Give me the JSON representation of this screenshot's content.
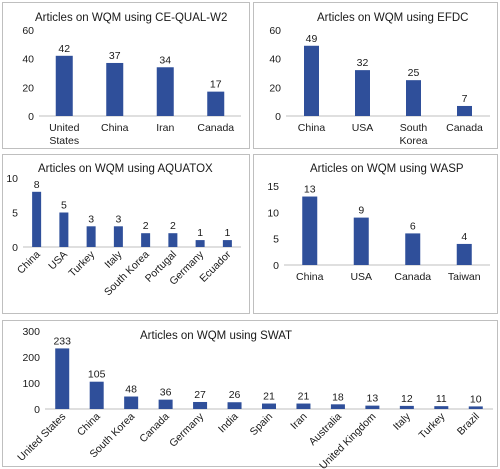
{
  "chart_data": [
    {
      "type": "bar",
      "title": "Articles on WQM using CE-QUAL-W2",
      "categories": [
        "United States",
        "China",
        "Iran",
        "Canada"
      ],
      "values": [
        42,
        37,
        34,
        17
      ],
      "ylim": [
        0,
        60
      ],
      "yticks": [
        0,
        20,
        40,
        60
      ],
      "grid": false,
      "legend": "none"
    },
    {
      "type": "bar",
      "title": "Articles on WQM using EFDC",
      "categories": [
        "China",
        "USA",
        "South Korea",
        "Canada"
      ],
      "values": [
        49,
        32,
        25,
        7
      ],
      "ylim": [
        0,
        60
      ],
      "yticks": [
        0,
        20,
        40,
        60
      ],
      "grid": false,
      "legend": "none"
    },
    {
      "type": "bar",
      "title": "Articles on WQM using AQUATOX",
      "categories": [
        "China",
        "USA",
        "Turkey",
        "Italy",
        "South Korea",
        "Portugal",
        "Germany",
        "Ecuador"
      ],
      "values": [
        8,
        5,
        3,
        3,
        2,
        2,
        1,
        1
      ],
      "ylim": [
        0,
        10
      ],
      "yticks": [
        0,
        5,
        10
      ],
      "grid": false,
      "legend": "none"
    },
    {
      "type": "bar",
      "title": "Articles on WQM using WASP",
      "categories": [
        "China",
        "USA",
        "Canada",
        "Taiwan"
      ],
      "values": [
        13,
        9,
        6,
        4
      ],
      "ylim": [
        0,
        15
      ],
      "yticks": [
        0,
        5,
        10,
        15
      ],
      "grid": false,
      "legend": "none"
    },
    {
      "type": "bar",
      "title": "Articles on WQM using SWAT",
      "categories": [
        "United States",
        "China",
        "South Korea",
        "Canada",
        "Germany",
        "India",
        "Spain",
        "Iran",
        "Australia",
        "United Kingdom",
        "Italy",
        "Turkey",
        "Brazil"
      ],
      "values": [
        233,
        105,
        48,
        36,
        27,
        26,
        21,
        21,
        18,
        13,
        12,
        11,
        10
      ],
      "ylim": [
        0,
        300
      ],
      "yticks": [
        0,
        100,
        200,
        300
      ],
      "grid": false,
      "legend": "none"
    }
  ],
  "colors": {
    "bar": "#2f4f9a"
  }
}
